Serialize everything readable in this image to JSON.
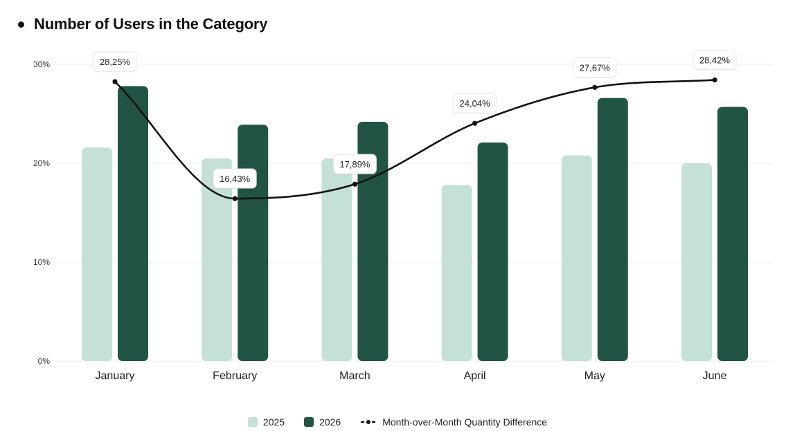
{
  "title": "Number of Users in the Category",
  "colors": {
    "series_2025": "#c5e0d6",
    "series_2026": "#215444",
    "line": "#111111",
    "grid": "#ececec",
    "label_bg": "#ffffff"
  },
  "legend": {
    "item_2025": "2025",
    "item_2026": "2026",
    "item_line": "Month-over-Month Quantity Difference"
  },
  "chart_data": {
    "type": "bar",
    "title": "Number of Users in the Category",
    "categories": [
      "January",
      "February",
      "March",
      "April",
      "May",
      "June"
    ],
    "y_ticks": [
      "0%",
      "10%",
      "20%",
      "30%"
    ],
    "ylim": [
      0,
      30
    ],
    "grid": true,
    "legend_position": "bottom",
    "series": [
      {
        "name": "2025",
        "type": "bar",
        "values": [
          21.6,
          20.5,
          20.5,
          17.8,
          20.8,
          20.0
        ]
      },
      {
        "name": "2026",
        "type": "bar",
        "values": [
          27.8,
          23.9,
          24.2,
          22.1,
          26.6,
          25.7
        ]
      },
      {
        "name": "Month-over-Month Quantity Difference",
        "type": "line",
        "values": [
          28.25,
          16.43,
          17.89,
          24.04,
          27.67,
          28.42
        ],
        "labels": [
          "28,25%",
          "16,43%",
          "17,89%",
          "24,04%",
          "27,67%",
          "28,42%"
        ]
      }
    ]
  }
}
